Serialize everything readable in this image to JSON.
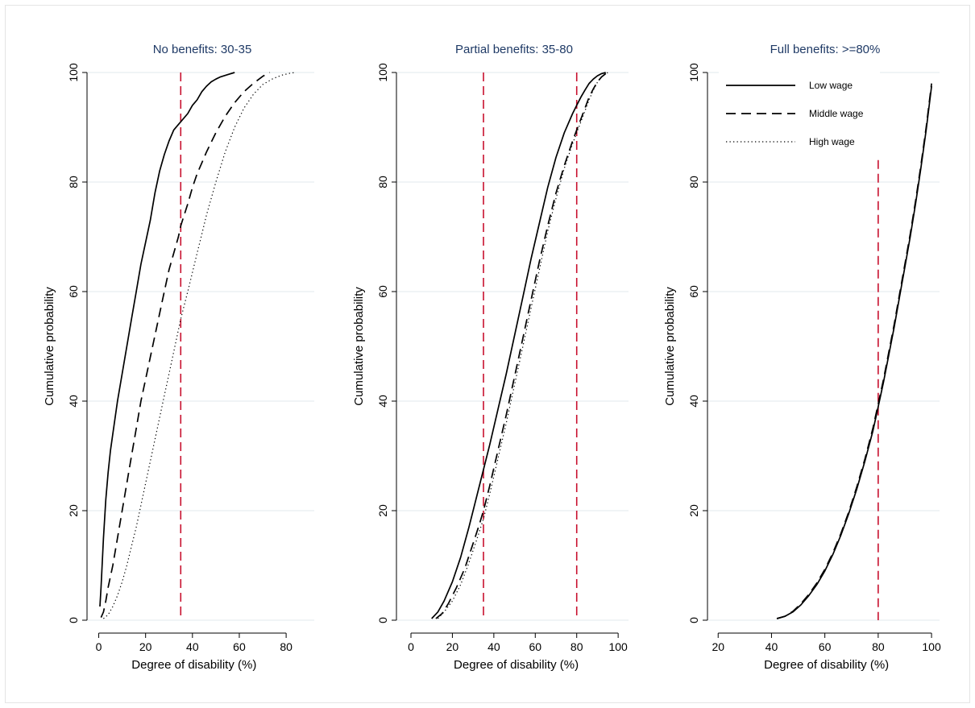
{
  "chart_data": [
    {
      "type": "line",
      "title": "No benefits: 30-35",
      "xlabel": "Degree of disability (%)",
      "ylabel": "Cumulative probability",
      "xlim": [
        -5,
        92
      ],
      "ylim": [
        0,
        100
      ],
      "xticks": [
        0,
        20,
        40,
        60,
        80
      ],
      "yticks": [
        0,
        20,
        40,
        60,
        80,
        100
      ],
      "grid": true,
      "reference_lines_x": [
        35
      ],
      "series": [
        {
          "name": "Low wage",
          "style": "solid",
          "x": [
            0.5,
            1,
            2,
            3,
            4,
            5,
            6,
            8,
            10,
            12,
            14,
            16,
            18,
            20,
            22,
            24,
            26,
            28,
            30,
            32,
            34,
            35,
            38,
            40,
            42,
            44,
            46,
            48,
            50,
            52,
            55,
            58
          ],
          "y": [
            2.5,
            6,
            15,
            22,
            27,
            31,
            34,
            40,
            45,
            50,
            55,
            60,
            65,
            69,
            73,
            78,
            82,
            85,
            87.5,
            89.5,
            90.5,
            91,
            92.5,
            94,
            95,
            96.5,
            97.5,
            98.3,
            98.8,
            99.2,
            99.6,
            100
          ]
        },
        {
          "name": "Middle wage",
          "style": "dashed",
          "x": [
            1,
            2,
            3,
            4,
            6,
            8,
            10,
            12,
            14,
            16,
            18,
            20,
            22,
            24,
            26,
            28,
            30,
            32,
            34,
            35,
            38,
            40,
            42,
            44,
            46,
            50,
            54,
            58,
            62,
            66,
            70,
            73
          ],
          "y": [
            0.5,
            1.5,
            3.5,
            6,
            10,
            15,
            20,
            25,
            30,
            35,
            40,
            44,
            48,
            52,
            56,
            60,
            64,
            67,
            70,
            72,
            76,
            79,
            81.5,
            83.5,
            85.5,
            89,
            92,
            94.5,
            96.5,
            98,
            99.3,
            100
          ]
        },
        {
          "name": "High wage",
          "style": "dotted",
          "x": [
            2,
            4,
            6,
            8,
            10,
            12,
            14,
            16,
            18,
            20,
            22,
            24,
            26,
            28,
            30,
            32,
            34,
            35,
            38,
            40,
            42,
            44,
            46,
            48,
            50,
            54,
            58,
            62,
            66,
            70,
            74,
            78,
            82,
            84
          ],
          "y": [
            0.3,
            1,
            2.5,
            4.5,
            7,
            10,
            13.5,
            17,
            21,
            25,
            29,
            33,
            37,
            41,
            45,
            49,
            53,
            55,
            60,
            63.5,
            67,
            70.5,
            74,
            77,
            80,
            85.5,
            90,
            93.5,
            96,
            97.8,
            98.8,
            99.5,
            99.9,
            100
          ]
        }
      ]
    },
    {
      "type": "line",
      "title": "Partial benefits: 35-80",
      "xlabel": "Degree of disability (%)",
      "ylabel": "Cumulative probability",
      "xlim": [
        -7,
        105
      ],
      "ylim": [
        0,
        100
      ],
      "xticks": [
        0,
        20,
        40,
        60,
        80,
        100
      ],
      "yticks": [
        0,
        20,
        40,
        60,
        80,
        100
      ],
      "grid": true,
      "reference_lines_x": [
        35,
        80
      ],
      "series": [
        {
          "name": "Low wage",
          "style": "solid",
          "x": [
            10,
            13,
            16,
            20,
            24,
            28,
            32,
            35,
            38,
            42,
            46,
            50,
            54,
            58,
            62,
            66,
            70,
            74,
            78,
            80,
            82,
            84,
            86,
            88,
            90,
            92,
            94
          ],
          "y": [
            0.3,
            1.5,
            3.5,
            7,
            11.5,
            17,
            23,
            27.5,
            32,
            38.5,
            45,
            52,
            59,
            66,
            72.5,
            79,
            84.5,
            89,
            92.5,
            94,
            95.5,
            96.8,
            98,
            98.8,
            99.4,
            99.8,
            100
          ]
        },
        {
          "name": "Middle wage",
          "style": "dashed",
          "x": [
            12,
            15,
            18,
            22,
            26,
            30,
            33,
            35,
            38,
            42,
            46,
            50,
            54,
            58,
            62,
            66,
            70,
            74,
            78,
            80,
            82,
            84,
            86,
            88,
            90,
            92,
            94,
            95
          ],
          "y": [
            0.3,
            1.2,
            3,
            6,
            9.5,
            14,
            17.5,
            20,
            24.5,
            31,
            37.5,
            44.5,
            51.5,
            58.5,
            65.5,
            72,
            78,
            83,
            87.5,
            89.5,
            91.5,
            93.5,
            95.5,
            97,
            98.3,
            99.2,
            99.8,
            100
          ]
        },
        {
          "name": "High wage",
          "style": "dotted",
          "x": [
            13,
            16,
            20,
            24,
            28,
            32,
            35,
            38,
            42,
            46,
            50,
            54,
            58,
            62,
            66,
            70,
            74,
            78,
            80,
            82,
            84,
            86,
            88,
            90,
            92,
            94,
            95
          ],
          "y": [
            0.3,
            1.5,
            3.5,
            6.5,
            10.5,
            15,
            18.5,
            23,
            29.5,
            36,
            43,
            50,
            57,
            64,
            71,
            77,
            82.5,
            87,
            89,
            91,
            93,
            95,
            96.8,
            98.2,
            99.2,
            99.8,
            100
          ]
        }
      ]
    },
    {
      "type": "line",
      "title": "Full benefits: >=80%",
      "xlabel": "Degree of disability (%)",
      "ylabel": "Cumulative probability",
      "xlim": [
        16,
        103
      ],
      "ylim": [
        0,
        100
      ],
      "xticks": [
        20,
        40,
        60,
        80,
        100
      ],
      "yticks": [
        0,
        20,
        40,
        60,
        80,
        100
      ],
      "grid": true,
      "reference_lines_x": [
        80
      ],
      "legend": {
        "position": "top-left",
        "entries": [
          "Low wage",
          "Middle wage",
          "High wage"
        ]
      },
      "series": [
        {
          "name": "Low wage",
          "style": "solid",
          "x": [
            42,
            45,
            48,
            51,
            54,
            57,
            60,
            63,
            66,
            69,
            72,
            75,
            78,
            80,
            82,
            84,
            86,
            88,
            90,
            92,
            94,
            96,
            98,
            100
          ],
          "y": [
            0.3,
            0.7,
            1.5,
            2.8,
            4.5,
            6.5,
            9,
            12,
            15.5,
            19.5,
            24,
            29,
            34.5,
            39,
            43.5,
            48.5,
            53.5,
            59,
            64.5,
            70,
            76,
            82.5,
            89.5,
            97.5
          ]
        },
        {
          "name": "Middle wage",
          "style": "dashed",
          "x": [
            42,
            45,
            48,
            51,
            54,
            57,
            60,
            63,
            66,
            69,
            72,
            75,
            78,
            80,
            82,
            84,
            86,
            88,
            90,
            92,
            94,
            96,
            98,
            100
          ],
          "y": [
            0.3,
            0.7,
            1.6,
            3,
            4.7,
            6.8,
            9.3,
            12.3,
            15.8,
            19.8,
            24.4,
            29.4,
            35,
            39.5,
            44,
            49,
            54,
            59.5,
            65,
            70.5,
            76.5,
            83,
            90,
            98
          ]
        },
        {
          "name": "High wage",
          "style": "dotted",
          "x": [],
          "y": []
        }
      ]
    }
  ]
}
